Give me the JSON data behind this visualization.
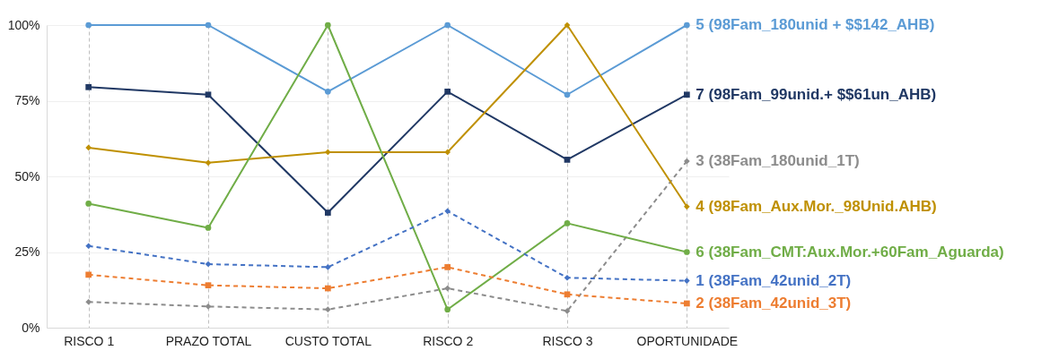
{
  "chart_data": {
    "type": "line",
    "categories": [
      "RISCO 1",
      "PRAZO TOTAL",
      "CUSTO TOTAL",
      "RISCO 2",
      "RISCO 3",
      "OPORTUNIDADE"
    ],
    "series": [
      {
        "name": "5 (98Fam_180unid + $$142_AHB)",
        "color": "#5b9bd5",
        "marker": "circle",
        "line_style": "solid",
        "values": [
          100,
          100,
          78,
          100,
          77,
          100
        ]
      },
      {
        "name": "7 (98Fam_99unid.+ $$61un_AHB)",
        "color": "#203864",
        "marker": "square",
        "line_style": "solid",
        "values": [
          79.5,
          77,
          38,
          78,
          55.5,
          77
        ]
      },
      {
        "name": "3 (38Fam_180unid_1T)",
        "color": "#8c8c8c",
        "marker": "diamond",
        "line_style": "dashed",
        "values": [
          8.5,
          7,
          6,
          13,
          5.5,
          55
        ]
      },
      {
        "name": "4 (98Fam_Aux.Mor._98Unid.AHB)",
        "color": "#bf9000",
        "marker": "diamond",
        "line_style": "solid",
        "values": [
          59.5,
          54.5,
          58,
          58,
          100,
          40
        ]
      },
      {
        "name": "6 (38Fam_CMT:Aux.Mor.+60Fam_Aguarda)",
        "color": "#70ad47",
        "marker": "circle",
        "line_style": "solid",
        "values": [
          41,
          33,
          100,
          6,
          34.5,
          25
        ]
      },
      {
        "name": "1 (38Fam_42unid_2T)",
        "color": "#4472c4",
        "marker": "diamond",
        "line_style": "dashed",
        "values": [
          27,
          21,
          20,
          38.5,
          16.5,
          15.5
        ]
      },
      {
        "name": "2 (38Fam_42unid_3T)",
        "color": "#ed7d31",
        "marker": "square",
        "line_style": "dashed",
        "values": [
          17.5,
          14,
          13,
          20,
          11,
          8
        ]
      }
    ],
    "ylim": [
      0,
      100
    ],
    "yticks": [
      {
        "value": 0,
        "label": "0%"
      },
      {
        "value": 25,
        "label": "25%"
      },
      {
        "value": 50,
        "label": "50%"
      },
      {
        "value": 75,
        "label": "75%"
      },
      {
        "value": 100,
        "label": "100%"
      }
    ],
    "grid": true,
    "legend": false
  }
}
